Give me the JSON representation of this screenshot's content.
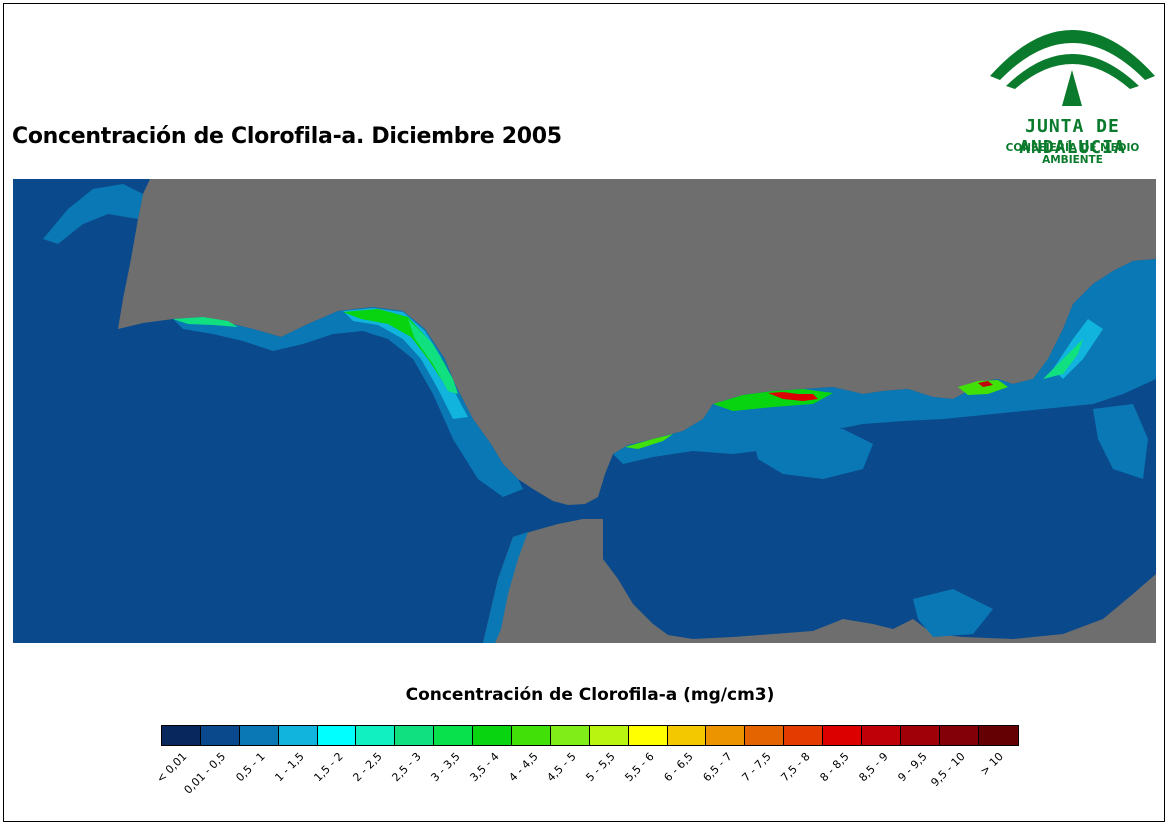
{
  "title": "Concentración de Clorofila-a. Diciembre 2005",
  "logo": {
    "name": "JUNTA DE ANDALUCIA",
    "subtitle": "CONSEJERÍA DE MEDIO AMBIENTE",
    "color": "#0a7a2c"
  },
  "map": {
    "land_color": "#6e6e6e",
    "sea_color": "#0a4a8c"
  },
  "legend": {
    "title": "Concentración de Clorofila-a (mg/cm3)",
    "classes": [
      {
        "label": "< 0,01",
        "color": "#08275c"
      },
      {
        "label": "0,01 - 0,5",
        "color": "#0a4a8c"
      },
      {
        "label": "0,5 - 1",
        "color": "#0a78b4"
      },
      {
        "label": "1 - 1,5",
        "color": "#10b4dc"
      },
      {
        "label": "1,5 - 2",
        "color": "#00ffff"
      },
      {
        "label": "2 - 2,5",
        "color": "#10f0c0"
      },
      {
        "label": "2,5 - 3",
        "color": "#10e080"
      },
      {
        "label": "3 - 3,5",
        "color": "#08e04c"
      },
      {
        "label": "3,5 - 4",
        "color": "#08d410"
      },
      {
        "label": "4 - 4,5",
        "color": "#40e008"
      },
      {
        "label": "4,5 - 5",
        "color": "#80ec18"
      },
      {
        "label": "5 - 5,5",
        "color": "#b8f410"
      },
      {
        "label": "5,5 - 6",
        "color": "#ffff00"
      },
      {
        "label": "6 - 6,5",
        "color": "#f4c800"
      },
      {
        "label": "6,5 - 7",
        "color": "#ec9400"
      },
      {
        "label": "7 - 7,5",
        "color": "#e46400"
      },
      {
        "label": "7,5 - 8",
        "color": "#e43c00"
      },
      {
        "label": "8 - 8,5",
        "color": "#dc0000"
      },
      {
        "label": "8,5 - 9",
        "color": "#c00008"
      },
      {
        "label": "9 - 9,5",
        "color": "#a00008"
      },
      {
        "label": "9,5 - 10",
        "color": "#840008"
      },
      {
        "label": "> 10",
        "color": "#640004"
      }
    ]
  }
}
